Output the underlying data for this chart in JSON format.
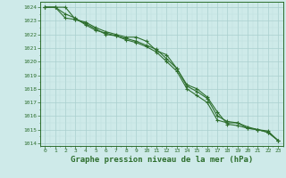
{
  "background_color": "#ceeae9",
  "grid_color_major": "#aacfce",
  "grid_color_minor": "#bddedd",
  "line_color": "#2d6e2d",
  "ylabel_ticks": [
    1014,
    1015,
    1016,
    1017,
    1018,
    1019,
    1020,
    1021,
    1022,
    1023,
    1024
  ],
  "xlim": [
    -0.5,
    23.5
  ],
  "ylim": [
    1013.8,
    1024.4
  ],
  "xlabel": "Graphe pression niveau de la mer (hPa)",
  "xlabel_fontsize": 6.5,
  "series": [
    [
      1024.0,
      1024.0,
      1024.0,
      1023.1,
      1022.9,
      1022.5,
      1022.2,
      1022.0,
      1021.8,
      1021.8,
      1021.5,
      1020.8,
      1020.5,
      1019.5,
      1018.3,
      1018.0,
      1017.4,
      1016.3,
      1015.4,
      1015.3,
      1015.1,
      1015.0,
      1014.8,
      1014.2
    ],
    [
      1024.0,
      1024.0,
      1023.2,
      1023.1,
      1022.8,
      1022.4,
      1022.0,
      1021.9,
      1021.7,
      1021.5,
      1021.2,
      1020.9,
      1020.2,
      1019.5,
      1018.2,
      1017.8,
      1017.3,
      1016.0,
      1015.6,
      1015.5,
      1015.2,
      1015.0,
      1014.9,
      1014.2
    ],
    [
      1024.0,
      1024.0,
      1023.5,
      1023.2,
      1022.7,
      1022.3,
      1022.1,
      1021.9,
      1021.6,
      1021.4,
      1021.1,
      1020.7,
      1020.0,
      1019.3,
      1018.0,
      1017.5,
      1017.0,
      1015.7,
      1015.5,
      1015.5,
      1015.1,
      1015.0,
      1014.8,
      1014.2
    ]
  ]
}
